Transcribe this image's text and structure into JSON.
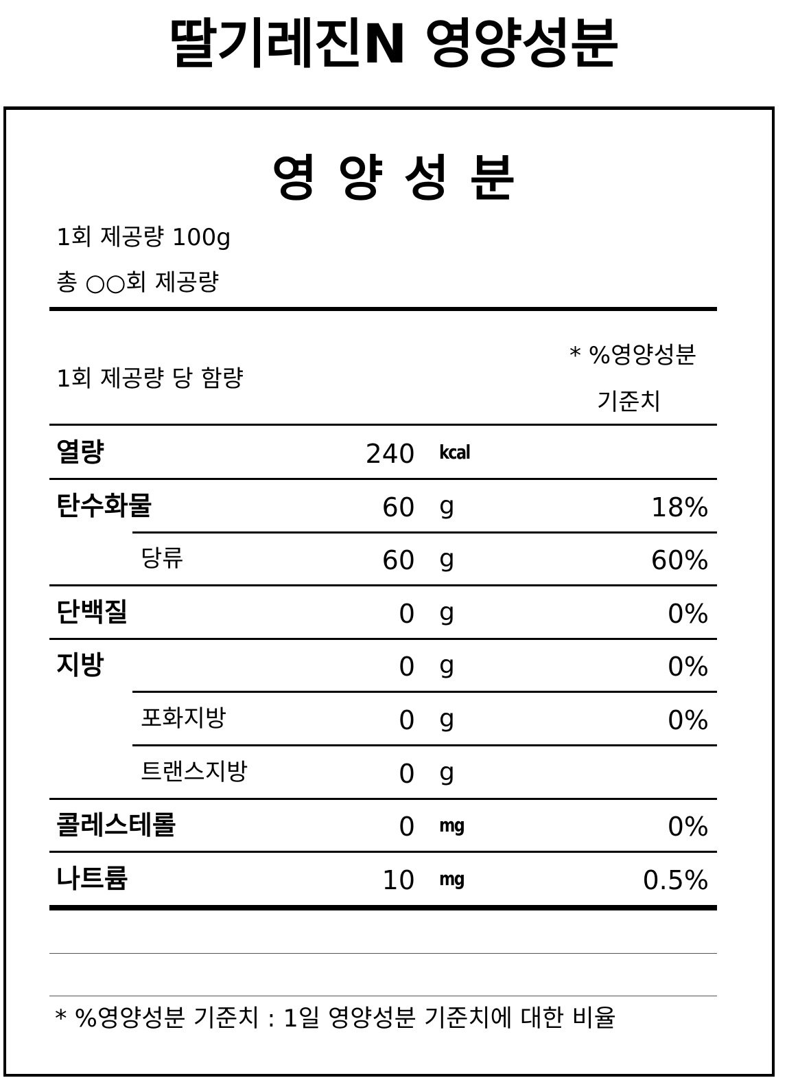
{
  "page_title": "딸기레진N 영양성분",
  "label": {
    "title": "영양성분",
    "serving_size": "1회 제공량  100g",
    "servings_total": "총  ○○회 제공량",
    "per_serving_header": "1회 제공량 당 함량",
    "dv_header_line1": "* %영양성분",
    "dv_header_line2": "기준치",
    "rows": [
      {
        "name": "열량",
        "amount": "240",
        "unit": "kcal",
        "percent": "",
        "sub": false
      },
      {
        "name": "탄수화물",
        "amount": "60",
        "unit": "g",
        "percent": "18%",
        "sub": false
      },
      {
        "name": "당류",
        "amount": "60",
        "unit": "g",
        "percent": "60%",
        "sub": true
      },
      {
        "name": "단백질",
        "amount": "0",
        "unit": "g",
        "percent": "0%",
        "sub": false
      },
      {
        "name": "지방",
        "amount": "0",
        "unit": "g",
        "percent": "0%",
        "sub": false
      },
      {
        "name": "포화지방",
        "amount": "0",
        "unit": "g",
        "percent": "0%",
        "sub": true
      },
      {
        "name": "트랜스지방",
        "amount": "0",
        "unit": "g",
        "percent": "",
        "sub": true
      },
      {
        "name": "콜레스테롤",
        "amount": "0",
        "unit": "mg",
        "percent": "0%",
        "sub": false
      },
      {
        "name": "나트륨",
        "amount": "10",
        "unit": "mg",
        "percent": "0.5%",
        "sub": false
      }
    ],
    "footnote": "* %영양성분 기준치 : 1일 영양성분 기준치에 대한 비율"
  }
}
